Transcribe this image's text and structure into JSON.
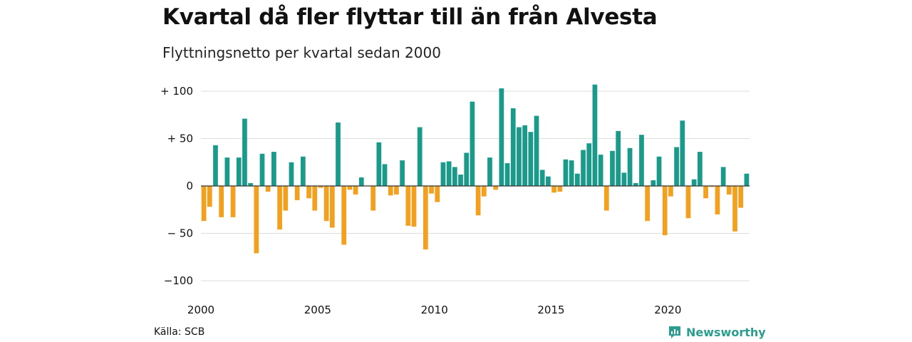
{
  "title": "Kvartal då fler flyttar till än från Alvesta",
  "subtitle": "Flyttningsnetto per kvartal sedan 2000",
  "source": "Källa: SCB",
  "logo_text": "Newsworthy",
  "colors": {
    "positive": "#1a9a8a",
    "negative": "#f2a01e",
    "grid": "#dddddd",
    "zero": "#333333"
  },
  "chart_data": {
    "type": "bar",
    "title": "Kvartal då fler flyttar till än från Alvesta",
    "subtitle": "Flyttningsnetto per kvartal sedan 2000",
    "xlabel": "",
    "ylabel": "",
    "ylim": [
      -110,
      110
    ],
    "yticks": [
      100,
      50,
      0,
      -50,
      -100
    ],
    "ytick_labels": [
      "+ 100",
      "+  50",
      "0",
      "− 50",
      "−100"
    ],
    "xtick_labels": [
      "2000",
      "2005",
      "2010",
      "2015",
      "2020"
    ],
    "grid": true,
    "start": "2000 Q1",
    "values": [
      -37,
      -22,
      43,
      -33,
      30,
      -33,
      30,
      71,
      3,
      -71,
      34,
      -6,
      36,
      -46,
      -26,
      25,
      -15,
      31,
      -13,
      -26,
      -2,
      -37,
      -44,
      67,
      -62,
      -4,
      -9,
      9,
      0,
      -26,
      46,
      23,
      -10,
      -9,
      27,
      -42,
      -43,
      62,
      -67,
      -8,
      -17,
      25,
      26,
      20,
      12,
      35,
      89,
      -31,
      -11,
      30,
      -4,
      103,
      24,
      82,
      62,
      64,
      57,
      74,
      17,
      10,
      -7,
      -6,
      28,
      27,
      13,
      38,
      45,
      107,
      33,
      -26,
      37,
      58,
      14,
      40,
      3,
      54,
      -37,
      6,
      31,
      -52,
      -11,
      41,
      69,
      -34,
      7,
      36,
      -13,
      -1,
      -30,
      20,
      -9,
      -48,
      -23,
      13
    ]
  }
}
